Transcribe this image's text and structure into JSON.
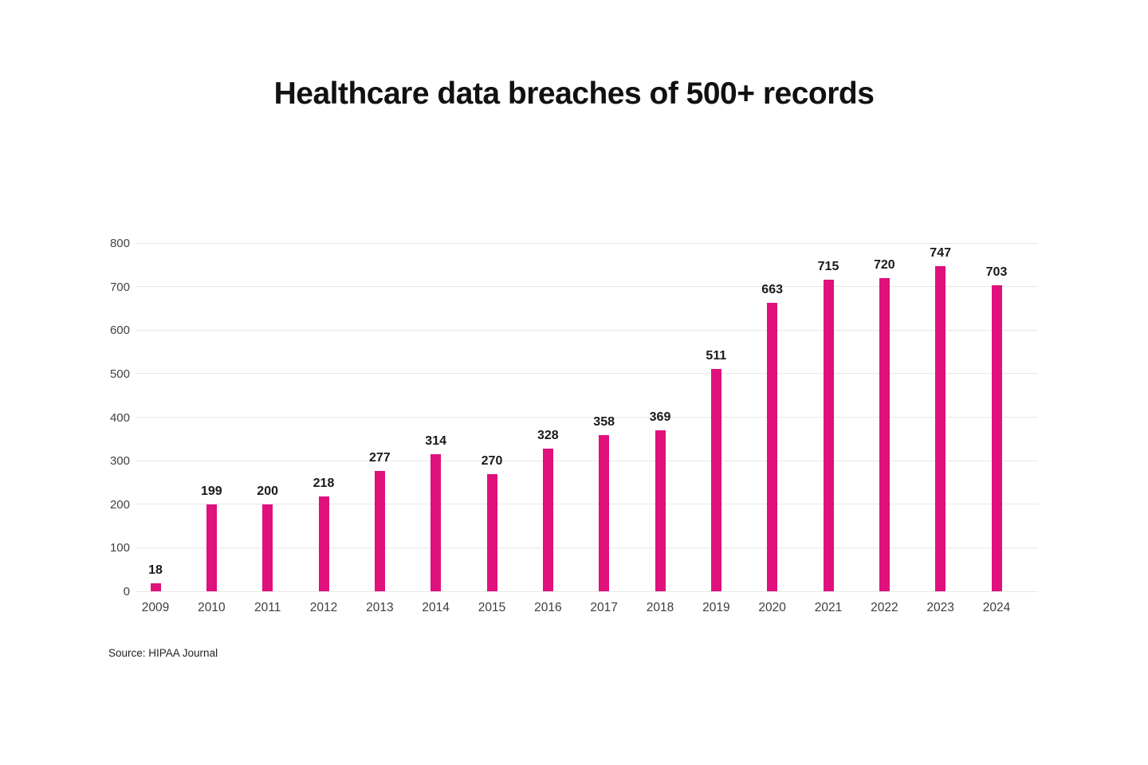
{
  "title": "Healthcare data breaches of 500+ records",
  "source": "Source: HIPAA Journal",
  "colors": {
    "bar": "#E0107C",
    "gridline": "#e7e7e7",
    "y_tick_label": "#424242",
    "x_tick_label": "#3d3d3d",
    "value_label": "#1a1a1a",
    "title": "#111111",
    "background": "#ffffff"
  },
  "chart_data": {
    "type": "bar",
    "title": "Healthcare data breaches of 500+ records",
    "categories": [
      "2009",
      "2010",
      "2011",
      "2012",
      "2013",
      "2014",
      "2015",
      "2016",
      "2017",
      "2018",
      "2019",
      "2020",
      "2021",
      "2022",
      "2023",
      "2024"
    ],
    "values": [
      18,
      199,
      200,
      218,
      277,
      314,
      270,
      328,
      358,
      369,
      511,
      663,
      715,
      720,
      747,
      703
    ],
    "xlabel": "",
    "ylabel": "",
    "ylim": [
      0,
      800
    ],
    "ytick_step": 100,
    "yticks": [
      0,
      100,
      200,
      300,
      400,
      500,
      600,
      700,
      800
    ],
    "grid": true,
    "legend": false,
    "data_labels": true,
    "source": "Source: HIPAA Journal"
  }
}
